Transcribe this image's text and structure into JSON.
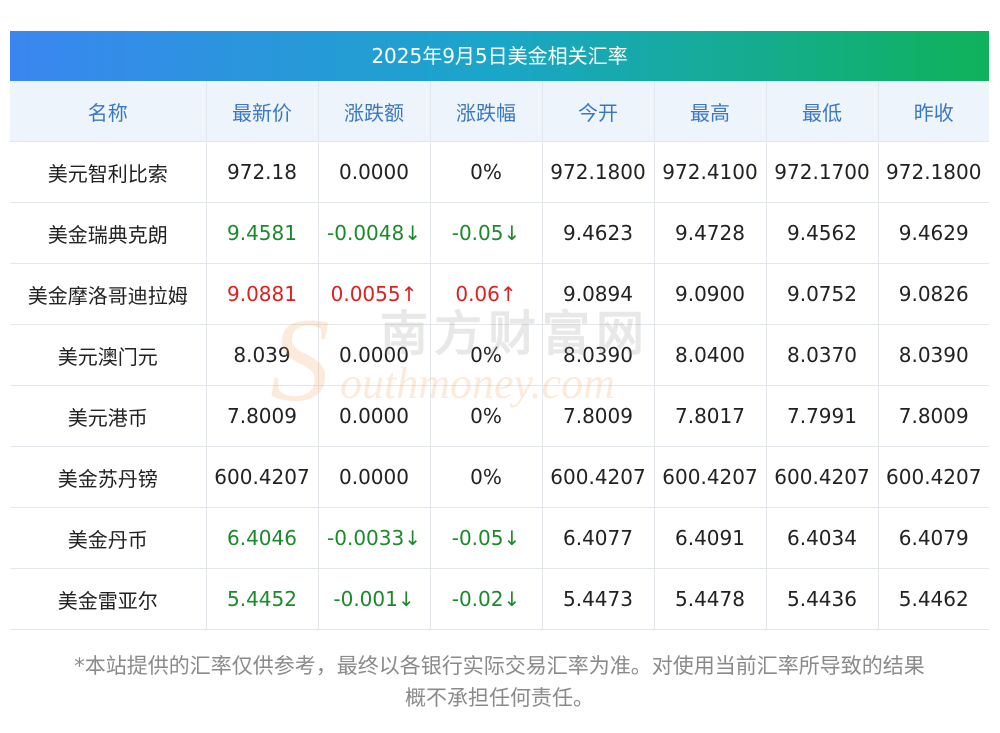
{
  "title": "2025年9月5日美金相关汇率",
  "columns": [
    "名称",
    "最新价",
    "涨跌额",
    "涨跌幅",
    "今开",
    "最高",
    "最低",
    "昨收"
  ],
  "rows": [
    {
      "name": "美元智利比索",
      "latest": "972.18",
      "change": "0.0000",
      "pct": "0%",
      "open": "972.1800",
      "high": "972.4100",
      "low": "972.1700",
      "prev": "972.1800",
      "trend": "flat"
    },
    {
      "name": "美金瑞典克朗",
      "latest": "9.4581",
      "change": "-0.0048↓",
      "pct": "-0.05↓",
      "open": "9.4623",
      "high": "9.4728",
      "low": "9.4562",
      "prev": "9.4629",
      "trend": "down"
    },
    {
      "name": "美金摩洛哥迪拉姆",
      "latest": "9.0881",
      "change": "0.0055↑",
      "pct": "0.06↑",
      "open": "9.0894",
      "high": "9.0900",
      "low": "9.0752",
      "prev": "9.0826",
      "trend": "up"
    },
    {
      "name": "美元澳门元",
      "latest": "8.039",
      "change": "0.0000",
      "pct": "0%",
      "open": "8.0390",
      "high": "8.0400",
      "low": "8.0370",
      "prev": "8.0390",
      "trend": "flat"
    },
    {
      "name": "美元港币",
      "latest": "7.8009",
      "change": "0.0000",
      "pct": "0%",
      "open": "7.8009",
      "high": "7.8017",
      "low": "7.7991",
      "prev": "7.8009",
      "trend": "flat"
    },
    {
      "name": "美金苏丹镑",
      "latest": "600.4207",
      "change": "0.0000",
      "pct": "0%",
      "open": "600.4207",
      "high": "600.4207",
      "low": "600.4207",
      "prev": "600.4207",
      "trend": "flat"
    },
    {
      "name": "美金丹币",
      "latest": "6.4046",
      "change": "-0.0033↓",
      "pct": "-0.05↓",
      "open": "6.4077",
      "high": "6.4091",
      "low": "6.4034",
      "prev": "6.4079",
      "trend": "down"
    },
    {
      "name": "美金雷亚尔",
      "latest": "5.4452",
      "change": "-0.001↓",
      "pct": "-0.02↓",
      "open": "5.4473",
      "high": "5.4478",
      "low": "5.4436",
      "prev": "5.4462",
      "trend": "down"
    }
  ],
  "footnote_line1": "*本站提供的汇率仅供参考，最终以各银行实际交易汇率为准。对使用当前汇率所导致的结果",
  "footnote_line2": "概不承担任何责任。",
  "watermark_cn": "南方财富网",
  "watermark_en": "outhmoney.com",
  "watermark_s": "S",
  "colors": {
    "up": "#e02020",
    "down": "#1a8a2a",
    "header_text": "#3b78c2",
    "header_bg": "#eef4fb"
  }
}
